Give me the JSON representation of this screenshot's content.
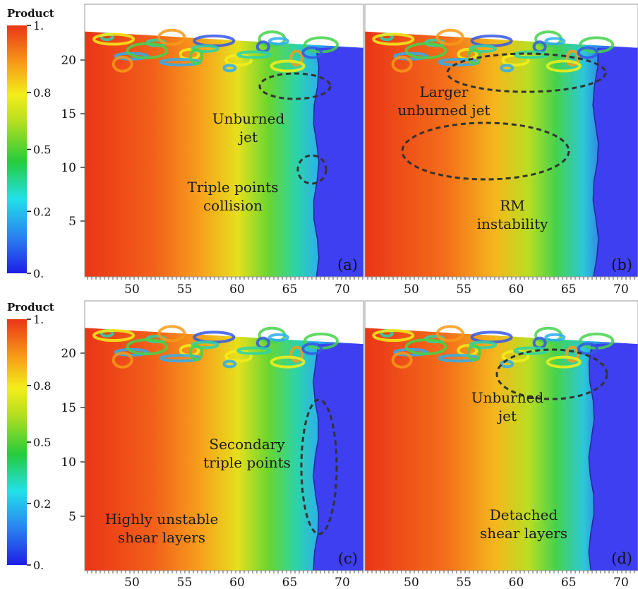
{
  "colorbar": {
    "title": "Product",
    "ticks": [
      "1.",
      "0.8",
      "0.5",
      "0.2",
      "0."
    ],
    "colors": [
      "#1e1ee6",
      "#2a7df0",
      "#22e0ea",
      "#25cc3c",
      "#bce01e",
      "#f3ee1a",
      "#f79a18",
      "#ea3517"
    ]
  },
  "axes": {
    "y_ticks": [
      "20",
      "15",
      "10",
      "5"
    ],
    "x_ticks": [
      "50",
      "55",
      "60",
      "65",
      "70"
    ]
  },
  "panels": [
    {
      "label": "(a)",
      "annotations": [
        [
          "Unburned",
          "jet"
        ],
        [
          "Triple points",
          "collision"
        ]
      ]
    },
    {
      "label": "(b)",
      "annotations": [
        [
          "Larger",
          "unburned jet"
        ],
        [
          "RM",
          "instability"
        ]
      ]
    },
    {
      "label": "(c)",
      "annotations": [
        [
          "Secondary",
          "triple points"
        ],
        [
          "Highly unstable",
          "shear layers"
        ]
      ]
    },
    {
      "label": "(d)",
      "annotations": [
        [
          "Unburned",
          "jet"
        ],
        [
          "Detached",
          "shear layers"
        ]
      ]
    }
  ]
}
